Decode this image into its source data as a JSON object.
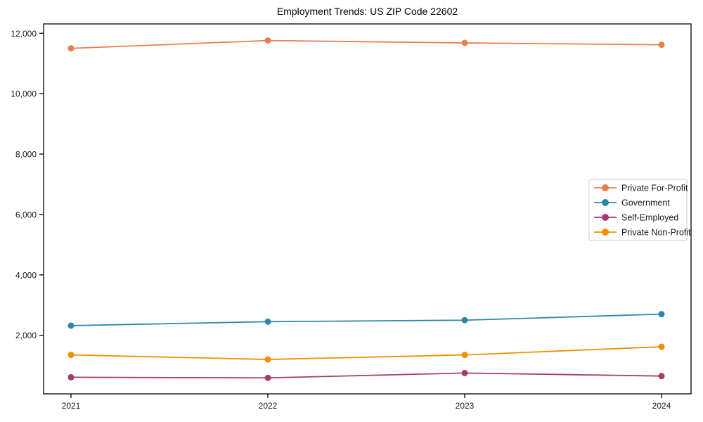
{
  "chart_data": {
    "type": "line",
    "title": "Employment Trends: US ZIP Code 22602",
    "xlabel": "",
    "ylabel": "",
    "x": [
      "2021",
      "2022",
      "2023",
      "2024"
    ],
    "series": [
      {
        "name": "Private For-Profit",
        "color": "#E87D4E",
        "values": [
          11500,
          11760,
          11680,
          11620
        ]
      },
      {
        "name": "Government",
        "color": "#2E86AB",
        "values": [
          2320,
          2450,
          2500,
          2700
        ]
      },
      {
        "name": "Self-Employed",
        "color": "#A23B72",
        "values": [
          610,
          590,
          750,
          650
        ]
      },
      {
        "name": "Private Non-Profit",
        "color": "#F18F01",
        "values": [
          1350,
          1200,
          1350,
          1620
        ]
      }
    ],
    "ylim": [
      60,
      12310
    ],
    "yticks": [
      {
        "value": 2000,
        "label": "2,000"
      },
      {
        "value": 4000,
        "label": "4,000"
      },
      {
        "value": 6000,
        "label": "6,000"
      },
      {
        "value": 8000,
        "label": "8,000"
      },
      {
        "value": 10000,
        "label": "10,000"
      },
      {
        "value": 12000,
        "label": "12,000"
      }
    ],
    "grid": false,
    "legend_position": "center right",
    "marker": "circle",
    "text_color": "#1a1a1a",
    "axis_color": "#000000",
    "legend_border_color": "#cccccc",
    "background_color": "#ffffff"
  }
}
